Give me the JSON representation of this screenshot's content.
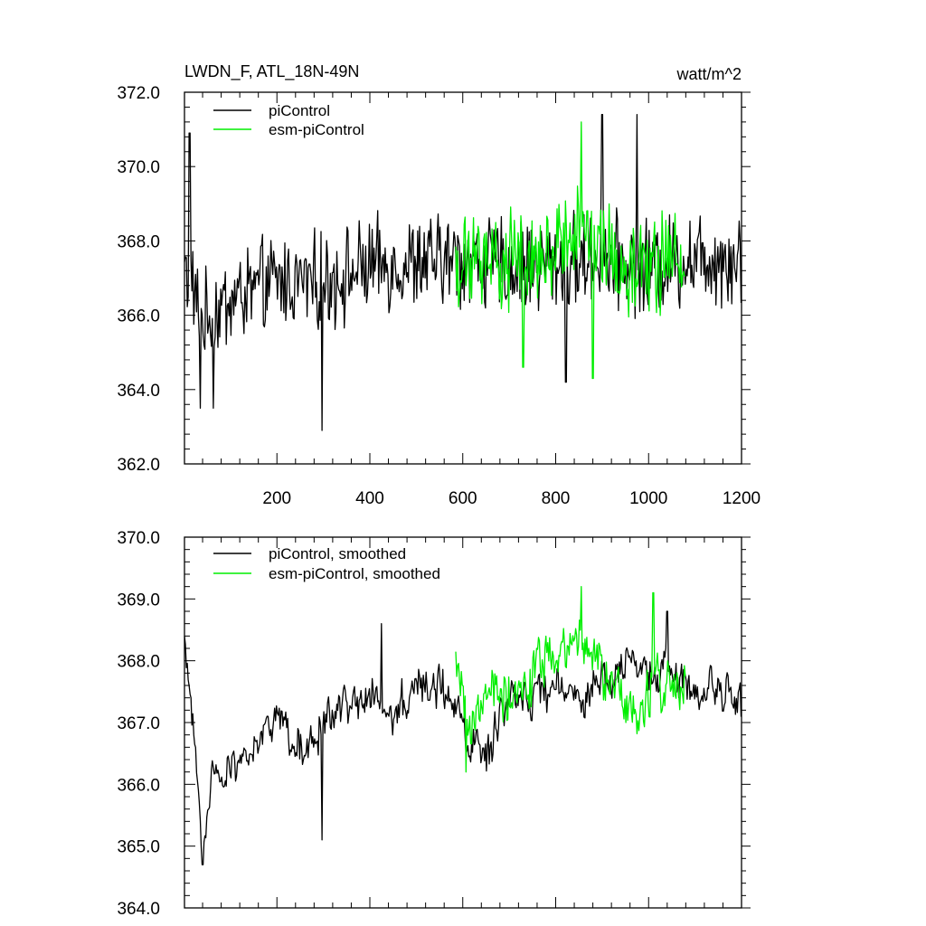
{
  "chart_data": [
    {
      "type": "line",
      "title": "LWDN_F, ATL_18N-49N",
      "units": "watt/m^2",
      "xlim": [
        1,
        1200
      ],
      "ylim": [
        362,
        372
      ],
      "x_ticks": [
        200,
        400,
        600,
        800,
        1000,
        1200
      ],
      "y_ticks": [
        "362.0",
        "364.0",
        "366.0",
        "368.0",
        "370.0",
        "372.0"
      ],
      "legend_location": "top-left",
      "series": [
        {
          "name": "piControl",
          "color": "#000000",
          "x_range": [
            1,
            1200
          ],
          "y_range_approx": [
            362.9,
            371.4
          ],
          "knots": [
            [
              1,
              367.3
            ],
            [
              40,
              365.8
            ],
            [
              100,
              366.4
            ],
            [
              200,
              366.9
            ],
            [
              300,
              366.9
            ],
            [
              400,
              367.3
            ],
            [
              500,
              367.4
            ],
            [
              600,
              367.5
            ],
            [
              700,
              367.3
            ],
            [
              800,
              367.4
            ],
            [
              900,
              367.5
            ],
            [
              1000,
              367.3
            ],
            [
              1100,
              367.6
            ],
            [
              1200,
              367.5
            ]
          ],
          "noise_amplitude": 1.0,
          "extremes": [
            [
              12,
              370.9
            ],
            [
              35,
              363.5
            ],
            [
              63,
              363.5
            ],
            [
              297,
              362.9
            ],
            [
              822,
              364.2
            ],
            [
              900,
              371.4
            ],
            [
              975,
              371.4
            ]
          ]
        },
        {
          "name": "esm-piControl",
          "color": "#00ee00",
          "x_range": [
            585,
            1080
          ],
          "y_range_approx": [
            364.3,
            371.2
          ],
          "knots": [
            [
              585,
              367.3
            ],
            [
              650,
              367.6
            ],
            [
              700,
              367.4
            ],
            [
              800,
              367.9
            ],
            [
              860,
              368.1
            ],
            [
              900,
              367.6
            ],
            [
              960,
              367.2
            ],
            [
              1000,
              367.4
            ],
            [
              1080,
              367.7
            ]
          ],
          "noise_amplitude": 1.05,
          "extremes": [
            [
              730,
              364.6
            ],
            [
              855,
              371.2
            ],
            [
              880,
              364.3
            ]
          ]
        }
      ]
    },
    {
      "type": "line",
      "title": "",
      "xlim": [
        1,
        1200
      ],
      "ylim": [
        364,
        370
      ],
      "y_ticks": [
        "364.0",
        "365.0",
        "366.0",
        "367.0",
        "368.0",
        "369.0",
        "370.0"
      ],
      "legend_location": "top-left",
      "series": [
        {
          "name": "piControl, smoothed",
          "color": "#000000",
          "x_range": [
            1,
            1200
          ],
          "y_range_approx": [
            364.7,
            368.8
          ],
          "knots": [
            [
              1,
              368.3
            ],
            [
              15,
              367.1
            ],
            [
              25,
              366.6
            ],
            [
              40,
              364.8
            ],
            [
              60,
              366.0
            ],
            [
              100,
              366.3
            ],
            [
              150,
              366.6
            ],
            [
              200,
              367.2
            ],
            [
              240,
              366.6
            ],
            [
              300,
              366.9
            ],
            [
              350,
              367.3
            ],
            [
              400,
              367.5
            ],
            [
              450,
              367.1
            ],
            [
              500,
              367.6
            ],
            [
              560,
              367.6
            ],
            [
              600,
              367.0
            ],
            [
              650,
              366.4
            ],
            [
              700,
              367.4
            ],
            [
              750,
              367.3
            ],
            [
              800,
              367.6
            ],
            [
              850,
              367.3
            ],
            [
              900,
              367.7
            ],
            [
              950,
              367.9
            ],
            [
              1000,
              367.8
            ],
            [
              1050,
              367.8
            ],
            [
              1100,
              367.6
            ],
            [
              1150,
              367.6
            ],
            [
              1200,
              367.3
            ]
          ],
          "noise_amplitude": 0.4,
          "extremes": [
            [
              40,
              364.7
            ],
            [
              297,
              365.1
            ],
            [
              425,
              368.6
            ],
            [
              1040,
              368.8
            ]
          ]
        },
        {
          "name": "esm-piControl, smoothed",
          "color": "#00ee00",
          "x_range": [
            585,
            1080
          ],
          "y_range_approx": [
            366.2,
            369.2
          ],
          "knots": [
            [
              585,
              367.9
            ],
            [
              620,
              366.9
            ],
            [
              660,
              367.6
            ],
            [
              720,
              367.3
            ],
            [
              760,
              367.8
            ],
            [
              800,
              368.1
            ],
            [
              860,
              368.3
            ],
            [
              900,
              367.8
            ],
            [
              960,
              367.2
            ],
            [
              1000,
              367.5
            ],
            [
              1080,
              367.6
            ]
          ],
          "noise_amplitude": 0.5,
          "extremes": [
            [
              607,
              366.2
            ],
            [
              855,
              369.2
            ],
            [
              1010,
              369.1
            ]
          ]
        }
      ]
    }
  ]
}
